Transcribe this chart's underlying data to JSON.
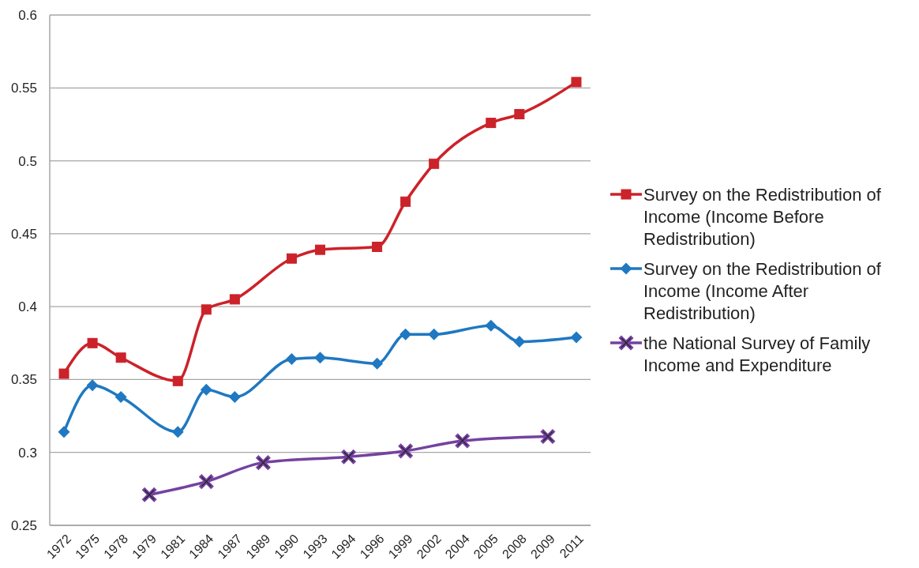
{
  "chart_data": {
    "type": "line",
    "categories": [
      "1972",
      "1975",
      "1978",
      "1979",
      "1981",
      "1984",
      "1987",
      "1989",
      "1990",
      "1993",
      "1994",
      "1996",
      "1999",
      "2002",
      "2004",
      "2005",
      "2008",
      "2009",
      "2011"
    ],
    "series": [
      {
        "name": "Survey on the Redistribution of Income (Income Before Redistribution)",
        "color": "#cc2229",
        "marker": "square",
        "values": [
          0.354,
          0.375,
          0.365,
          null,
          0.349,
          0.398,
          0.405,
          null,
          0.433,
          0.439,
          null,
          0.441,
          0.472,
          0.498,
          null,
          0.526,
          0.532,
          null,
          0.554
        ]
      },
      {
        "name": "Survey on the Redistribution of Income (Income After Redistribution)",
        "color": "#1f78c1",
        "marker": "diamond",
        "values": [
          0.314,
          0.346,
          0.338,
          null,
          0.314,
          0.343,
          0.338,
          null,
          0.364,
          0.365,
          null,
          0.361,
          0.381,
          0.381,
          null,
          0.387,
          0.376,
          null,
          0.379
        ]
      },
      {
        "name": "the National Survey of Family Income and Expenditure",
        "color": "#7442a0",
        "marker": "cross",
        "values": [
          null,
          null,
          null,
          0.271,
          null,
          0.28,
          null,
          0.293,
          null,
          null,
          0.297,
          null,
          0.301,
          null,
          0.308,
          null,
          null,
          0.311,
          null
        ]
      }
    ],
    "ylim": [
      0.25,
      0.6
    ],
    "yticks": [
      0.25,
      0.3,
      0.35,
      0.4,
      0.45,
      0.5,
      0.55,
      0.6
    ],
    "grid": "y",
    "legend": "right",
    "line_style": "solid"
  }
}
